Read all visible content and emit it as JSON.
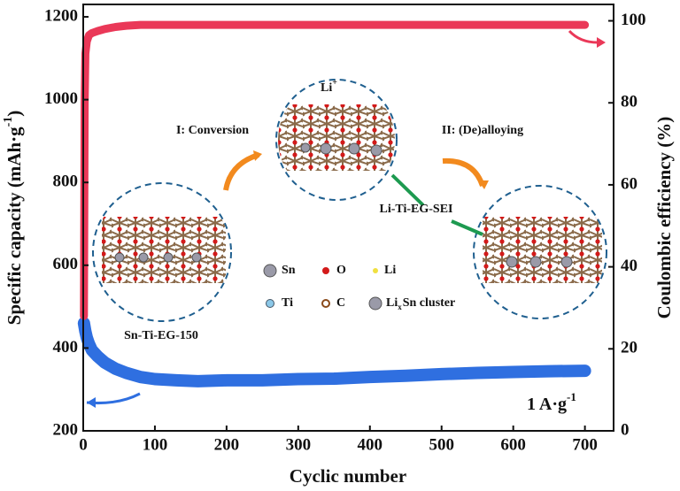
{
  "chart_data": {
    "type": "line",
    "x_label": "Cyclic number",
    "y_label": {
      "text": "Specific capacity (mAh·g",
      "sup": "-1",
      "end": ")"
    },
    "y2_label": "Coulombic efficiency (%)",
    "x": [
      1,
      2,
      3,
      5,
      8,
      12,
      20,
      30,
      45,
      60,
      80,
      100,
      130,
      160,
      200,
      250,
      300,
      350,
      400,
      450,
      500,
      550,
      600,
      650,
      700
    ],
    "series": [
      {
        "color": "#2f6fe0",
        "values": [
          460,
          450,
          440,
          425,
          410,
          395,
          380,
          365,
          350,
          340,
          330,
          325,
          322,
          320,
          322,
          322,
          325,
          326,
          330,
          333,
          337,
          340,
          342,
          344,
          345
        ]
      },
      {
        "color": "#ea3858",
        "axis": "y2",
        "values": [
          28,
          80,
          92,
          95,
          96.5,
          97,
          97.5,
          98,
          98.5,
          98.8,
          99,
          99,
          99,
          99,
          99,
          99,
          99,
          99,
          99,
          99,
          99,
          99,
          99,
          99,
          99
        ]
      }
    ],
    "xlim": [
      0,
      740
    ],
    "xticks": [
      0,
      100,
      200,
      300,
      400,
      500,
      600,
      700
    ],
    "ylim": [
      200,
      1230
    ],
    "yticks": [
      200,
      400,
      600,
      800,
      1000,
      1200
    ],
    "y2lim": [
      0,
      104
    ],
    "y2ticks": [
      0,
      20,
      40,
      60,
      80,
      100
    ],
    "annotations": {
      "conversion": "I: Conversion",
      "dealloying": "II: (De)alloying",
      "sei": "Li-Ti-EG-SEI",
      "sample": "Sn-Ti-EG-150",
      "li_ion": {
        "text": "Li",
        "sup": "+"
      },
      "current": {
        "text": "1 A·g",
        "sup": "-1"
      },
      "legend_items": [
        "Sn",
        "O",
        "Li",
        "Ti",
        "C"
      ],
      "cluster": {
        "base": "Li",
        "sub": "x",
        "rest": "Sn cluster"
      }
    }
  }
}
